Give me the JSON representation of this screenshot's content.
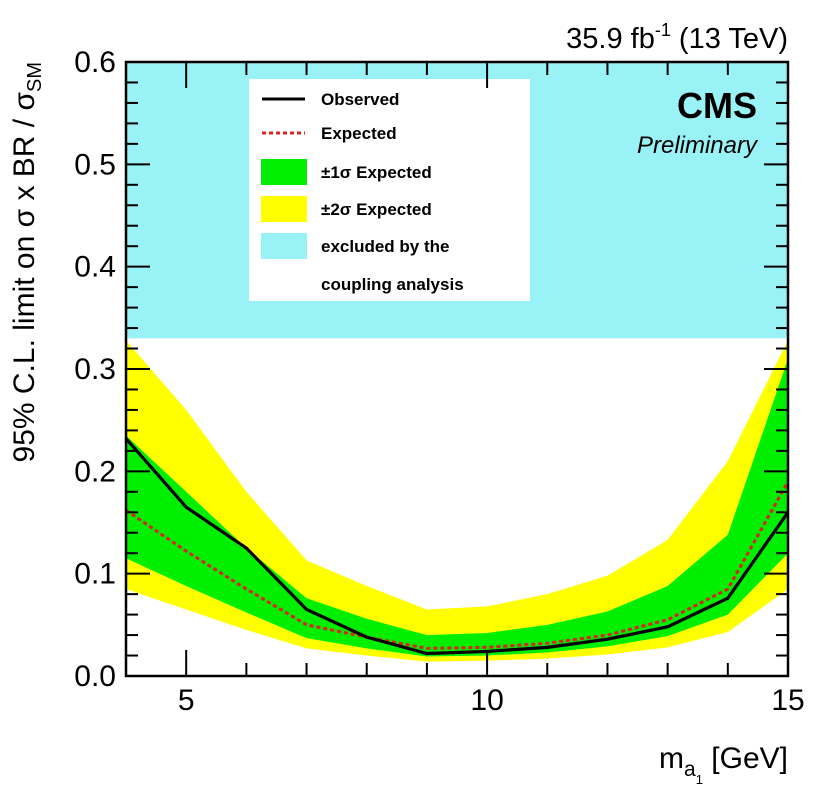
{
  "chart_data": {
    "type": "line",
    "title": "",
    "luminosity": {
      "value": "35.9 fb",
      "exponent": "-1",
      "energy": " (13 TeV)"
    },
    "experiment": "CMS",
    "status": "Preliminary",
    "xlabel": {
      "main": "m",
      "sub": "a",
      "subsub": "1",
      "unit": " [GeV]"
    },
    "ylabel": {
      "main": "95% C.L. limit on σ x BR / σ",
      "sub": "SM"
    },
    "xlim": [
      4,
      15
    ],
    "ylim": [
      0,
      0.6
    ],
    "xticks": [
      5,
      10,
      15
    ],
    "xtick_labels": [
      "5",
      "10",
      "15"
    ],
    "yticks": [
      0,
      0.1,
      0.2,
      0.3,
      0.4,
      0.5,
      0.6
    ],
    "ytick_labels": [
      "0.0",
      "0.1",
      "0.2",
      "0.3",
      "0.4",
      "0.5",
      "0.6"
    ],
    "x": [
      4,
      5,
      6,
      7,
      8,
      9,
      10,
      11,
      12,
      13,
      14,
      15
    ],
    "series": [
      {
        "name": "Observed",
        "style": "solid",
        "color": "#000000",
        "values": [
          0.232,
          0.165,
          0.125,
          0.065,
          0.038,
          0.022,
          0.024,
          0.028,
          0.036,
          0.048,
          0.076,
          0.16
        ]
      },
      {
        "name": "Expected",
        "style": "dashed",
        "color": "#e02020",
        "values": [
          0.162,
          0.122,
          0.085,
          0.05,
          0.038,
          0.027,
          0.028,
          0.032,
          0.04,
          0.055,
          0.085,
          0.19
        ]
      }
    ],
    "bands": [
      {
        "name": "±2σ Expected",
        "color": "#ffff00",
        "low": [
          0.085,
          0.065,
          0.045,
          0.027,
          0.02,
          0.014,
          0.015,
          0.017,
          0.021,
          0.028,
          0.043,
          0.085
        ],
        "high": [
          0.328,
          0.26,
          0.18,
          0.113,
          0.088,
          0.065,
          0.068,
          0.08,
          0.098,
          0.133,
          0.21,
          0.328
        ]
      },
      {
        "name": "±1σ Expected",
        "color": "#00ee00",
        "low": [
          0.115,
          0.088,
          0.062,
          0.037,
          0.027,
          0.019,
          0.02,
          0.023,
          0.029,
          0.039,
          0.06,
          0.12
        ],
        "high": [
          0.235,
          0.18,
          0.125,
          0.076,
          0.056,
          0.04,
          0.042,
          0.05,
          0.063,
          0.088,
          0.138,
          0.31
        ]
      }
    ],
    "excluded_region": {
      "name": "excluded by the coupling analysis",
      "ymin": 0.33,
      "color": "#99f2f5"
    },
    "legend": {
      "position": "top-left",
      "entries": [
        {
          "label": "Observed",
          "kind": "line-solid",
          "color": "#000000"
        },
        {
          "label": "Expected",
          "kind": "line-dashed",
          "color": "#e02020"
        },
        {
          "label": "±1σ Expected",
          "kind": "box",
          "color": "#00ee00"
        },
        {
          "label": "±2σ Expected",
          "kind": "box",
          "color": "#ffff00"
        },
        {
          "label": "excluded by the",
          "kind": "box",
          "color": "#99f2f5"
        },
        {
          "label": "coupling analysis",
          "kind": "none",
          "color": ""
        }
      ]
    }
  }
}
